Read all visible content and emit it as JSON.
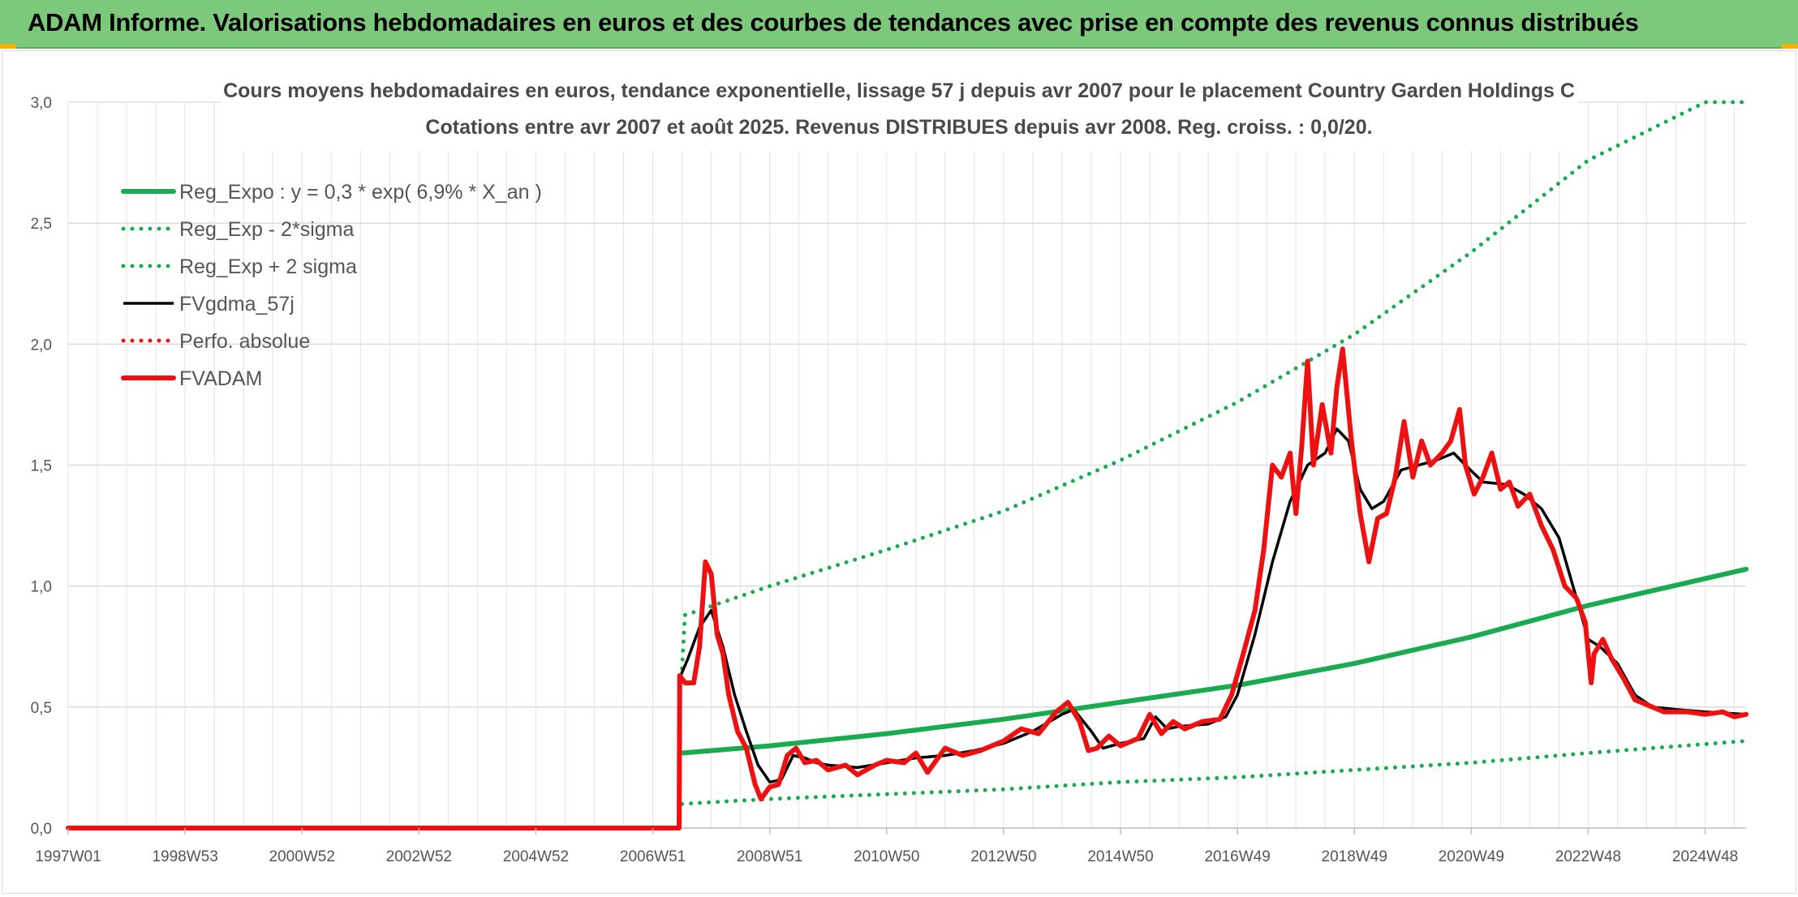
{
  "header": {
    "title": "ADAM Informe. Valorisations hebdomadaires en euros et des courbes de tendances avec prise en compte des revenus connus distribués"
  },
  "colors": {
    "header_bg": "#7dc97b",
    "green": "#1aaa50",
    "red": "#ee1111",
    "black": "#000000"
  },
  "chart_data": {
    "type": "line",
    "title_line1": "Cours moyens hebdomadaires en euros, tendance exponentielle, lissage 57 j depuis avr 2007 pour le placement Country Garden Holdings C",
    "title_line2": "Cotations entre avr 2007 et août 2025. Revenus DISTRIBUES depuis avr 2008. Reg. croiss. : 0,0/20.",
    "xlabel": "",
    "ylabel": "",
    "x_range": [
      1997.0,
      2025.7
    ],
    "ylim": [
      0,
      3.0
    ],
    "grid": true,
    "legend_position": "top-left",
    "y_ticks": [
      "0,0",
      "0,5",
      "1,0",
      "1,5",
      "2,0",
      "2,5",
      "3,0"
    ],
    "x_ticks": [
      {
        "label": "1997W01",
        "x": 1997.0
      },
      {
        "label": "1998W53",
        "x": 1999.0
      },
      {
        "label": "2000W52",
        "x": 2001.0
      },
      {
        "label": "2002W52",
        "x": 2003.0
      },
      {
        "label": "2004W52",
        "x": 2005.0
      },
      {
        "label": "2006W51",
        "x": 2007.0
      },
      {
        "label": "2008W51",
        "x": 2009.0
      },
      {
        "label": "2010W50",
        "x": 2011.0
      },
      {
        "label": "2012W50",
        "x": 2013.0
      },
      {
        "label": "2014W50",
        "x": 2015.0
      },
      {
        "label": "2016W49",
        "x": 2017.0
      },
      {
        "label": "2018W49",
        "x": 2019.0
      },
      {
        "label": "2020W49",
        "x": 2021.0
      },
      {
        "label": "2022W48",
        "x": 2023.0
      },
      {
        "label": "2024W48",
        "x": 2025.0
      }
    ],
    "series": [
      {
        "name": "Reg_Expo : y = 0,3 * exp( 6,9% *  X_an )",
        "style": "solid-thick",
        "color": "#1aaa50",
        "points": [
          [
            2007.5,
            0.31
          ],
          [
            2009,
            0.34
          ],
          [
            2011,
            0.39
          ],
          [
            2013,
            0.45
          ],
          [
            2015,
            0.52
          ],
          [
            2017,
            0.59
          ],
          [
            2019,
            0.68
          ],
          [
            2021,
            0.79
          ],
          [
            2023,
            0.92
          ],
          [
            2025.7,
            1.07
          ]
        ]
      },
      {
        "name": "Reg_Exp - 2*sigma",
        "style": "dotted",
        "color": "#1aaa50",
        "points": [
          [
            2007.5,
            0.1
          ],
          [
            2009,
            0.12
          ],
          [
            2011,
            0.14
          ],
          [
            2013,
            0.16
          ],
          [
            2015,
            0.19
          ],
          [
            2017,
            0.21
          ],
          [
            2019,
            0.24
          ],
          [
            2021,
            0.27
          ],
          [
            2023,
            0.31
          ],
          [
            2025.7,
            0.36
          ]
        ]
      },
      {
        "name": "Reg_Exp + 2 sigma",
        "style": "dotted",
        "color": "#1aaa50",
        "points": [
          [
            2007.5,
            0.66
          ],
          [
            2007.55,
            0.88
          ],
          [
            2009,
            1.0
          ],
          [
            2011,
            1.15
          ],
          [
            2013,
            1.31
          ],
          [
            2015,
            1.52
          ],
          [
            2017,
            1.76
          ],
          [
            2019,
            2.04
          ],
          [
            2021,
            2.38
          ],
          [
            2023,
            2.76
          ],
          [
            2025.0,
            3.0
          ],
          [
            2025.7,
            3.0
          ]
        ]
      },
      {
        "name": "FVgdma_57j",
        "style": "solid",
        "color": "#000000",
        "points": [
          [
            1997.0,
            0
          ],
          [
            2007.45,
            0
          ],
          [
            2007.46,
            0.62
          ],
          [
            2007.6,
            0.7
          ],
          [
            2007.8,
            0.83
          ],
          [
            2008.0,
            0.9
          ],
          [
            2008.2,
            0.75
          ],
          [
            2008.4,
            0.55
          ],
          [
            2008.6,
            0.4
          ],
          [
            2008.8,
            0.26
          ],
          [
            2009.0,
            0.19
          ],
          [
            2009.2,
            0.2
          ],
          [
            2009.4,
            0.3
          ],
          [
            2009.6,
            0.29
          ],
          [
            2009.8,
            0.27
          ],
          [
            2010.0,
            0.26
          ],
          [
            2010.5,
            0.25
          ],
          [
            2011.0,
            0.27
          ],
          [
            2011.5,
            0.29
          ],
          [
            2012.0,
            0.3
          ],
          [
            2012.5,
            0.32
          ],
          [
            2013.0,
            0.35
          ],
          [
            2013.5,
            0.4
          ],
          [
            2014.0,
            0.47
          ],
          [
            2014.2,
            0.49
          ],
          [
            2014.5,
            0.4
          ],
          [
            2014.7,
            0.33
          ],
          [
            2015.0,
            0.35
          ],
          [
            2015.4,
            0.37
          ],
          [
            2015.6,
            0.46
          ],
          [
            2015.8,
            0.41
          ],
          [
            2016.0,
            0.42
          ],
          [
            2016.5,
            0.43
          ],
          [
            2016.8,
            0.46
          ],
          [
            2017.0,
            0.55
          ],
          [
            2017.3,
            0.8
          ],
          [
            2017.6,
            1.1
          ],
          [
            2017.9,
            1.35
          ],
          [
            2018.2,
            1.5
          ],
          [
            2018.5,
            1.55
          ],
          [
            2018.7,
            1.65
          ],
          [
            2018.9,
            1.6
          ],
          [
            2019.1,
            1.4
          ],
          [
            2019.3,
            1.32
          ],
          [
            2019.5,
            1.35
          ],
          [
            2019.8,
            1.48
          ],
          [
            2020.1,
            1.5
          ],
          [
            2020.4,
            1.52
          ],
          [
            2020.7,
            1.55
          ],
          [
            2020.9,
            1.5
          ],
          [
            2021.2,
            1.43
          ],
          [
            2021.6,
            1.42
          ],
          [
            2021.9,
            1.38
          ],
          [
            2022.2,
            1.32
          ],
          [
            2022.5,
            1.2
          ],
          [
            2022.8,
            0.95
          ],
          [
            2023.0,
            0.78
          ],
          [
            2023.2,
            0.75
          ],
          [
            2023.5,
            0.68
          ],
          [
            2023.8,
            0.55
          ],
          [
            2024.1,
            0.5
          ],
          [
            2024.5,
            0.49
          ],
          [
            2025.0,
            0.48
          ],
          [
            2025.7,
            0.47
          ]
        ]
      },
      {
        "name": "Perfo. absolue",
        "style": "dotted",
        "color": "#ee1111",
        "points": []
      },
      {
        "name": "FVADAM",
        "style": "solid-thick",
        "color": "#ee1111",
        "points": [
          [
            1997.0,
            0
          ],
          [
            2007.45,
            0
          ],
          [
            2007.46,
            0.63
          ],
          [
            2007.55,
            0.6
          ],
          [
            2007.7,
            0.6
          ],
          [
            2007.8,
            0.75
          ],
          [
            2007.9,
            1.1
          ],
          [
            2008.0,
            1.05
          ],
          [
            2008.1,
            0.8
          ],
          [
            2008.2,
            0.72
          ],
          [
            2008.3,
            0.55
          ],
          [
            2008.45,
            0.4
          ],
          [
            2008.6,
            0.33
          ],
          [
            2008.75,
            0.18
          ],
          [
            2008.85,
            0.12
          ],
          [
            2009.0,
            0.17
          ],
          [
            2009.15,
            0.18
          ],
          [
            2009.3,
            0.3
          ],
          [
            2009.45,
            0.33
          ],
          [
            2009.6,
            0.27
          ],
          [
            2009.8,
            0.28
          ],
          [
            2010.0,
            0.24
          ],
          [
            2010.3,
            0.26
          ],
          [
            2010.5,
            0.22
          ],
          [
            2010.8,
            0.26
          ],
          [
            2011.0,
            0.28
          ],
          [
            2011.3,
            0.27
          ],
          [
            2011.5,
            0.31
          ],
          [
            2011.7,
            0.23
          ],
          [
            2012.0,
            0.33
          ],
          [
            2012.3,
            0.3
          ],
          [
            2012.6,
            0.32
          ],
          [
            2013.0,
            0.36
          ],
          [
            2013.3,
            0.41
          ],
          [
            2013.6,
            0.39
          ],
          [
            2013.9,
            0.48
          ],
          [
            2014.1,
            0.52
          ],
          [
            2014.3,
            0.44
          ],
          [
            2014.45,
            0.32
          ],
          [
            2014.6,
            0.33
          ],
          [
            2014.8,
            0.38
          ],
          [
            2015.0,
            0.34
          ],
          [
            2015.3,
            0.37
          ],
          [
            2015.5,
            0.47
          ],
          [
            2015.7,
            0.39
          ],
          [
            2015.9,
            0.44
          ],
          [
            2016.1,
            0.41
          ],
          [
            2016.4,
            0.44
          ],
          [
            2016.7,
            0.45
          ],
          [
            2016.9,
            0.55
          ],
          [
            2017.1,
            0.72
          ],
          [
            2017.3,
            0.9
          ],
          [
            2017.45,
            1.15
          ],
          [
            2017.6,
            1.5
          ],
          [
            2017.75,
            1.45
          ],
          [
            2017.9,
            1.55
          ],
          [
            2018.0,
            1.3
          ],
          [
            2018.1,
            1.58
          ],
          [
            2018.2,
            1.93
          ],
          [
            2018.3,
            1.5
          ],
          [
            2018.45,
            1.75
          ],
          [
            2018.6,
            1.55
          ],
          [
            2018.7,
            1.82
          ],
          [
            2018.8,
            1.98
          ],
          [
            2018.95,
            1.6
          ],
          [
            2019.1,
            1.3
          ],
          [
            2019.25,
            1.1
          ],
          [
            2019.4,
            1.28
          ],
          [
            2019.55,
            1.3
          ],
          [
            2019.7,
            1.45
          ],
          [
            2019.85,
            1.68
          ],
          [
            2020.0,
            1.45
          ],
          [
            2020.15,
            1.6
          ],
          [
            2020.3,
            1.5
          ],
          [
            2020.5,
            1.55
          ],
          [
            2020.65,
            1.6
          ],
          [
            2020.8,
            1.73
          ],
          [
            2020.9,
            1.5
          ],
          [
            2021.05,
            1.38
          ],
          [
            2021.2,
            1.45
          ],
          [
            2021.35,
            1.55
          ],
          [
            2021.5,
            1.4
          ],
          [
            2021.65,
            1.43
          ],
          [
            2021.8,
            1.33
          ],
          [
            2022.0,
            1.38
          ],
          [
            2022.2,
            1.25
          ],
          [
            2022.4,
            1.15
          ],
          [
            2022.6,
            1.0
          ],
          [
            2022.8,
            0.95
          ],
          [
            2022.95,
            0.85
          ],
          [
            2023.05,
            0.6
          ],
          [
            2023.1,
            0.72
          ],
          [
            2023.25,
            0.78
          ],
          [
            2023.4,
            0.7
          ],
          [
            2023.6,
            0.62
          ],
          [
            2023.8,
            0.53
          ],
          [
            2024.0,
            0.51
          ],
          [
            2024.3,
            0.48
          ],
          [
            2024.7,
            0.48
          ],
          [
            2025.0,
            0.47
          ],
          [
            2025.3,
            0.48
          ],
          [
            2025.5,
            0.46
          ],
          [
            2025.7,
            0.47
          ]
        ]
      }
    ]
  }
}
